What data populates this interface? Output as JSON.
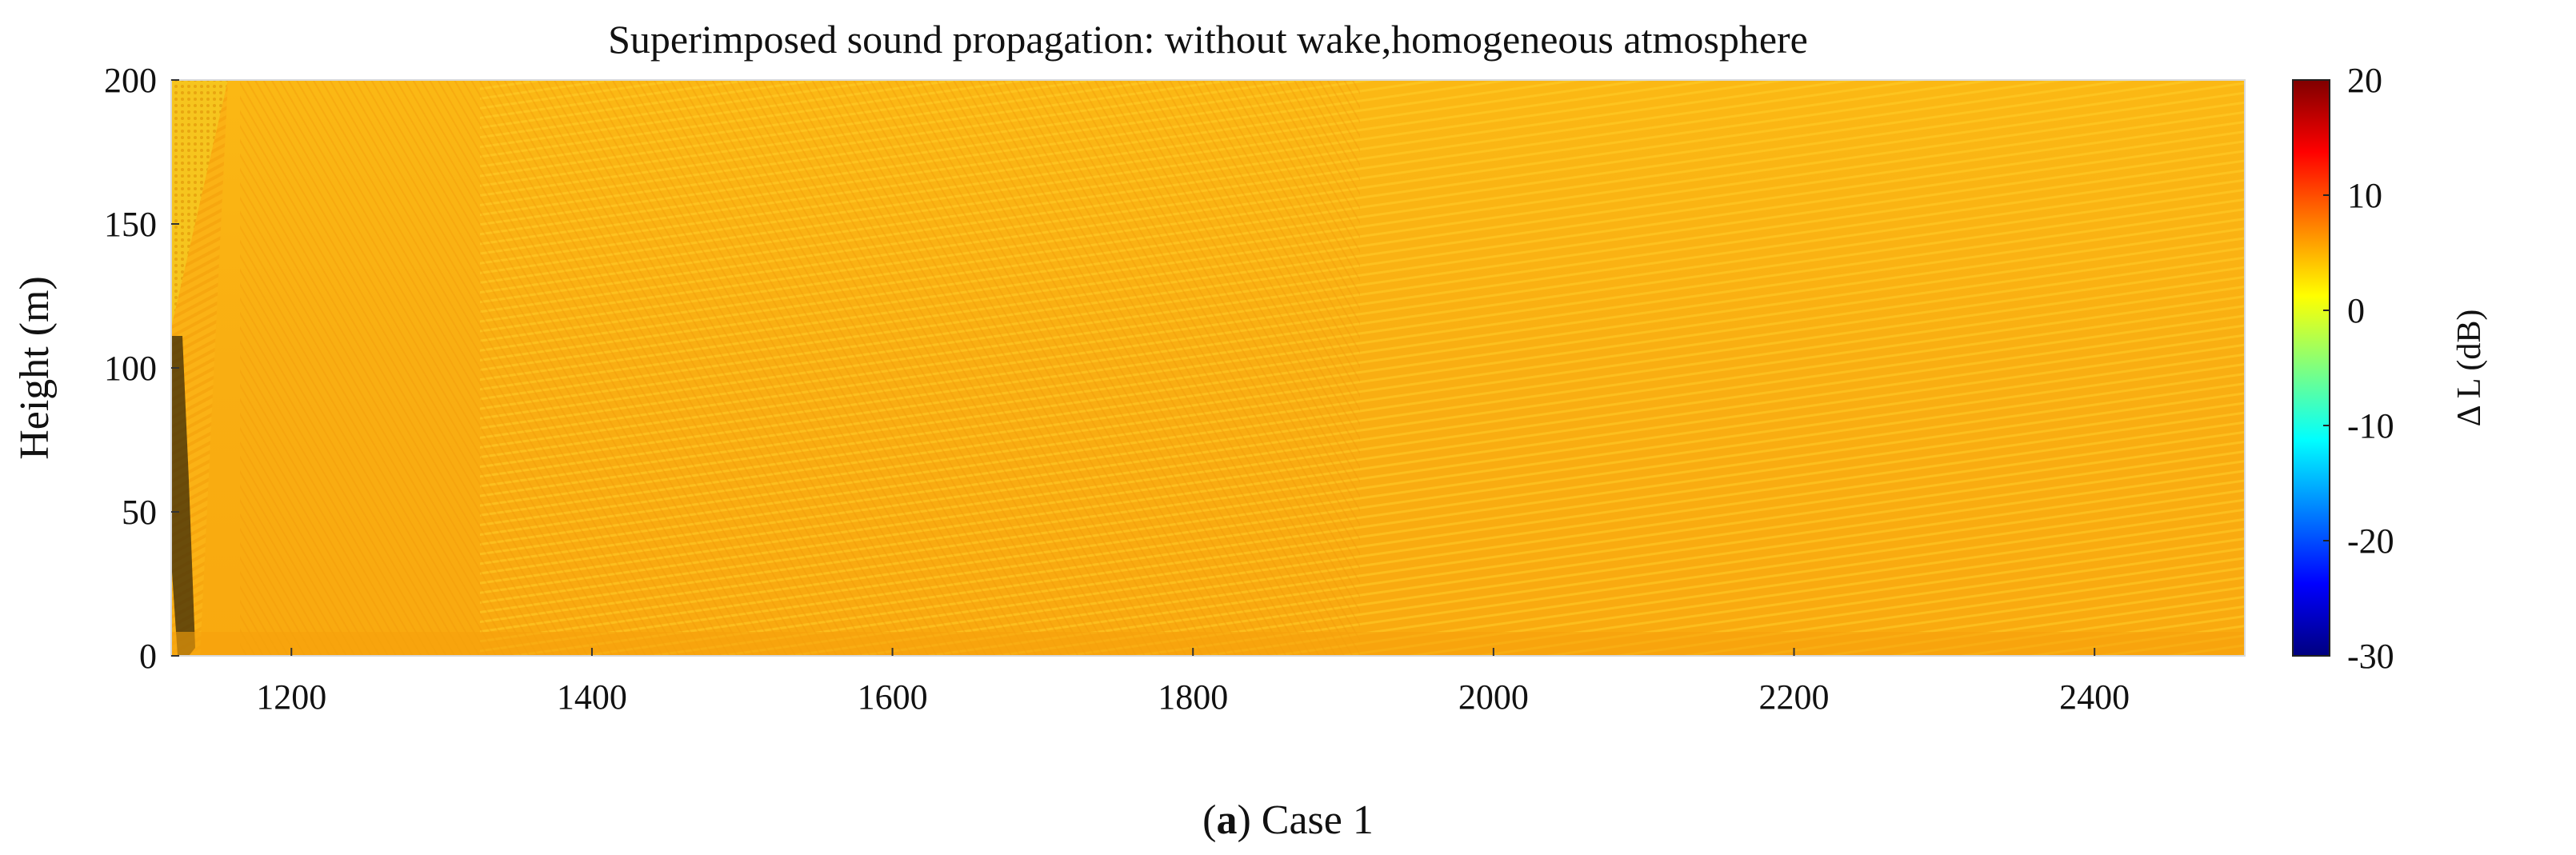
{
  "chart_data": {
    "type": "heatmap",
    "title": "Superimposed sound propagation: without wake,homogeneous atmosphere",
    "xlabel": "",
    "ylabel": "Height (m)",
    "x_range": [
      1120,
      2500
    ],
    "y_range": [
      0,
      200
    ],
    "x_ticks": [
      1200,
      1400,
      1600,
      1800,
      2000,
      2200,
      2400
    ],
    "y_ticks": [
      0,
      50,
      100,
      150,
      200
    ],
    "colorbar": {
      "label": "Δ L (dB)",
      "range": [
        -30,
        20
      ],
      "ticks": [
        -30,
        -20,
        -10,
        0,
        10,
        20
      ],
      "colormap": "jet"
    },
    "field_description": "Values predominantly around 5–8 dB across the field, with interference fringe pattern",
    "caption": {
      "bold": "a",
      "prefix": "(",
      "suffix": ") Case 1"
    }
  }
}
